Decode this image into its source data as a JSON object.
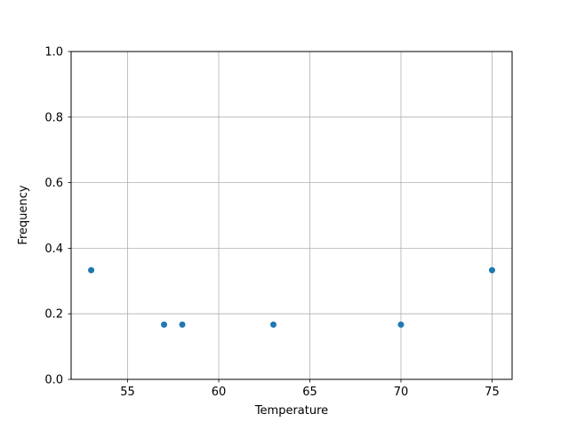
{
  "chart_data": {
    "type": "scatter",
    "title": "",
    "xlabel": "Temperature",
    "ylabel": "Frequency",
    "points": [
      {
        "x": 53,
        "y": 0.333
      },
      {
        "x": 57,
        "y": 0.167
      },
      {
        "x": 58,
        "y": 0.167
      },
      {
        "x": 63,
        "y": 0.167
      },
      {
        "x": 70,
        "y": 0.167
      },
      {
        "x": 75,
        "y": 0.333
      }
    ],
    "x_ticks": [
      55,
      60,
      65,
      70,
      75
    ],
    "y_ticks": [
      0.0,
      0.2,
      0.4,
      0.6,
      0.8,
      1.0
    ],
    "xlim": [
      51.9,
      76.1
    ],
    "ylim": [
      0.0,
      1.0
    ],
    "grid": true,
    "legend": "none",
    "colors": {
      "marker": "#1f77b4",
      "grid": "#b0b0b0",
      "spine": "#000000",
      "background": "#ffffff",
      "text": "#000000"
    }
  }
}
